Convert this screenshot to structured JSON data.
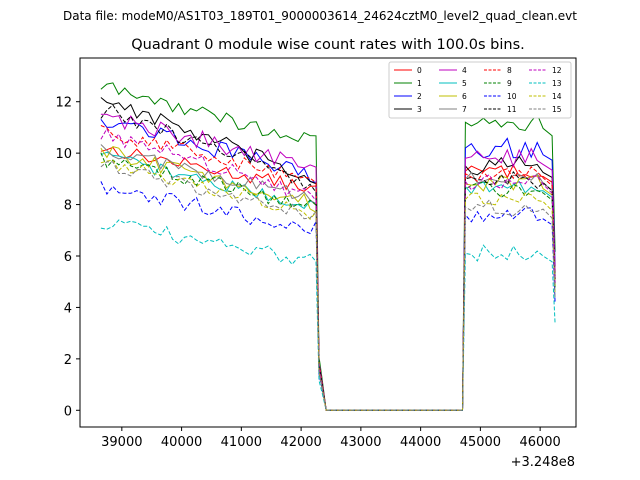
{
  "chart_data": {
    "type": "line",
    "suptitle": "Data file: modeM0/AS1T03_189T01_9000003614_24624cztM0_level2_quad_clean.evt",
    "title": "Quadrant 0 module wise count rates with 100.0s bins.",
    "xlabel": "",
    "ylabel": "",
    "x_offset_label": "+3.248e8",
    "xlim": [
      38300,
      46600
    ],
    "ylim": [
      -0.65,
      13.7
    ],
    "x_ticks": [
      39000,
      40000,
      41000,
      42000,
      43000,
      44000,
      45000,
      46000
    ],
    "x_tick_labels": [
      "39000",
      "40000",
      "41000",
      "42000",
      "43000",
      "44000",
      "45000",
      "46000"
    ],
    "y_ticks": [
      0,
      2,
      4,
      6,
      8,
      10,
      12
    ],
    "y_tick_labels": [
      "0",
      "2",
      "4",
      "6",
      "8",
      "10",
      "12"
    ],
    "legend_location": "top-right",
    "segments": [
      {
        "start": 38650,
        "end": 42250
      },
      {
        "start": 44750,
        "end": 46250
      }
    ],
    "series": [
      {
        "name": "0",
        "color": "#ff0000",
        "style": "solid",
        "start_level": 10.2,
        "end_level": 8.6,
        "level2": 9.3,
        "noise": 0.25
      },
      {
        "name": "1",
        "color": "#008000",
        "style": "solid",
        "start_level": 12.6,
        "end_level": 10.4,
        "level2": 11.2,
        "noise": 0.3
      },
      {
        "name": "2",
        "color": "#0000ff",
        "style": "solid",
        "start_level": 11.4,
        "end_level": 9.1,
        "level2": 10.2,
        "noise": 0.35
      },
      {
        "name": "3",
        "color": "#000000",
        "style": "solid",
        "start_level": 12.2,
        "end_level": 8.9,
        "level2": 9.5,
        "noise": 0.35
      },
      {
        "name": "4",
        "color": "#bf00bf",
        "style": "solid",
        "start_level": 11.5,
        "end_level": 9.4,
        "level2": 9.8,
        "noise": 0.35
      },
      {
        "name": "5",
        "color": "#00bfbf",
        "style": "solid",
        "start_level": 9.9,
        "end_level": 7.9,
        "level2": 8.7,
        "noise": 0.25
      },
      {
        "name": "6",
        "color": "#bfbf00",
        "style": "solid",
        "start_level": 10.1,
        "end_level": 8.0,
        "level2": 8.8,
        "noise": 0.3
      },
      {
        "name": "7",
        "color": "#808080",
        "style": "solid",
        "start_level": 10.2,
        "end_level": 8.2,
        "level2": 9.0,
        "noise": 0.3
      },
      {
        "name": "8",
        "color": "#ff0000",
        "style": "dashed",
        "start_level": 10.9,
        "end_level": 8.9,
        "level2": 9.2,
        "noise": 0.3
      },
      {
        "name": "9",
        "color": "#008000",
        "style": "dashed",
        "start_level": 9.8,
        "end_level": 7.9,
        "level2": 8.6,
        "noise": 0.3
      },
      {
        "name": "10",
        "color": "#0000ff",
        "style": "dashed",
        "start_level": 8.6,
        "end_level": 7.1,
        "level2": 7.6,
        "noise": 0.35
      },
      {
        "name": "11",
        "color": "#000000",
        "style": "dashed",
        "start_level": 11.7,
        "end_level": 8.8,
        "level2": 9.0,
        "noise": 0.35
      },
      {
        "name": "12",
        "color": "#bf00bf",
        "style": "dashed",
        "start_level": 10.8,
        "end_level": 8.3,
        "level2": 8.9,
        "noise": 0.3
      },
      {
        "name": "13",
        "color": "#00bfbf",
        "style": "dashed",
        "start_level": 7.3,
        "end_level": 5.8,
        "level2": 6.1,
        "noise": 0.3
      },
      {
        "name": "14",
        "color": "#bfbf00",
        "style": "dashed",
        "start_level": 9.8,
        "end_level": 7.6,
        "level2": 8.2,
        "noise": 0.3
      },
      {
        "name": "15",
        "color": "#808080",
        "style": "dashed",
        "start_level": 9.6,
        "end_level": 7.5,
        "level2": 7.9,
        "noise": 0.3
      }
    ]
  }
}
